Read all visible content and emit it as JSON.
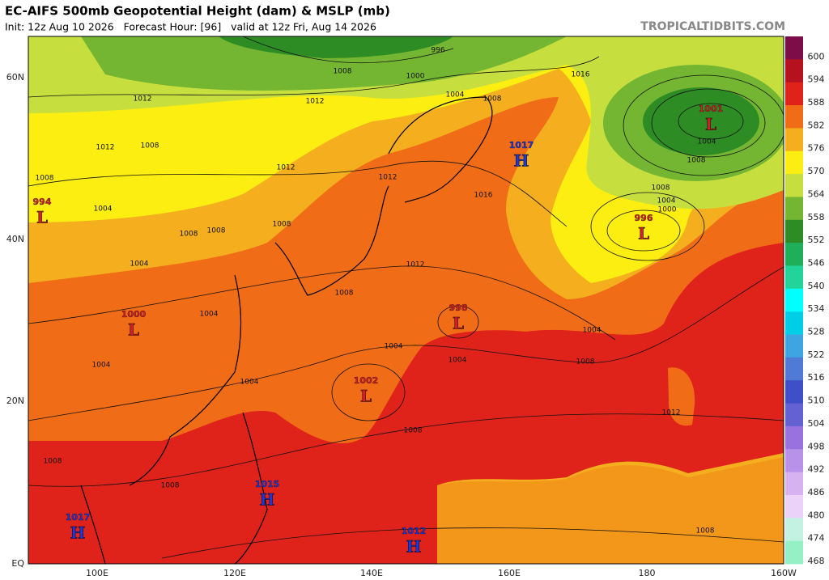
{
  "header": {
    "title": "EC-AIFS 500mb Geopotential Height (dam) & MSLP (mb)",
    "subtitle": "Init: 12z Aug 10 2026   Forecast Hour: [96]   valid at 12z Fri, Aug 14 2026",
    "source": "TROPICALTIDBITS.COM"
  },
  "map": {
    "lat_labels": [
      "60N",
      "40N",
      "20N",
      "EQ"
    ],
    "lon_labels": [
      "100E",
      "120E",
      "140E",
      "160E",
      "180",
      "160W"
    ],
    "pressure_centers": [
      {
        "letter": "L",
        "value": "1001"
      },
      {
        "letter": "L",
        "value": "996"
      },
      {
        "letter": "L",
        "value": "998"
      },
      {
        "letter": "L",
        "value": "1002"
      },
      {
        "letter": "L",
        "value": "1000"
      },
      {
        "letter": "L",
        "value": "994"
      },
      {
        "letter": "H",
        "value": "1017"
      },
      {
        "letter": "H",
        "value": "1015"
      },
      {
        "letter": "H",
        "value": "1017"
      },
      {
        "letter": "H",
        "value": "1012"
      }
    ],
    "isobar_labels": [
      "996",
      "1008",
      "1000",
      "1004",
      "1008",
      "1016",
      "1012",
      "1012",
      "1012",
      "1008",
      "1012",
      "1012",
      "1016",
      "1008",
      "1004",
      "1008",
      "1008",
      "1008",
      "1004",
      "1012",
      "1008",
      "1004",
      "1004",
      "1004",
      "1004",
      "1008",
      "1004",
      "1012",
      "1008",
      "1008",
      "1008",
      "1008",
      "1004",
      "1000",
      "1004",
      "1008",
      "1004",
      "1008"
    ]
  },
  "colorbar": {
    "levels": [
      600,
      594,
      588,
      582,
      576,
      570,
      564,
      558,
      552,
      546,
      540,
      534,
      528,
      522,
      516,
      510,
      504,
      498,
      492,
      486,
      480,
      474,
      468
    ],
    "colors": [
      "#7d0d48",
      "#b5111f",
      "#e0231a",
      "#f06c17",
      "#f5ae1e",
      "#fbee10",
      "#c6df3e",
      "#74b532",
      "#2e8c24",
      "#1fae5a",
      "#22d49a",
      "#00ffff",
      "#00cde6",
      "#3ea4e2",
      "#4f7ad6",
      "#3f4fc8",
      "#6462d2",
      "#9a72e0",
      "#b892e8",
      "#d6b2f0",
      "#ead2f8",
      "#c4f2e2",
      "#96f0c6"
    ]
  }
}
